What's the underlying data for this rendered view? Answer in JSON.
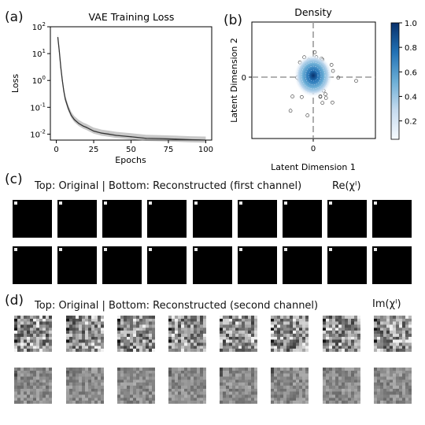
{
  "panels": {
    "a": "(a)",
    "b": "(b)",
    "c": "(c)",
    "d": "(d)"
  },
  "chart_data": [
    {
      "type": "line",
      "title": "VAE Training Loss",
      "xlabel": "Epochs",
      "ylabel": "Loss",
      "yscale": "log",
      "xlim": [
        0,
        100
      ],
      "ylim": [
        0.006,
        100
      ],
      "x_ticks": [
        "0",
        "25",
        "50",
        "75",
        "100"
      ],
      "y_ticks": [
        "10^2",
        "10^1",
        "10^0",
        "10^-1",
        "10^-2"
      ],
      "series": [
        {
          "x": [
            1,
            2,
            3,
            4,
            5,
            6,
            8,
            10,
            12,
            15,
            18,
            20,
            25,
            30,
            35,
            40,
            50,
            60,
            70,
            80,
            90,
            100
          ],
          "y": [
            40,
            12,
            3,
            1.0,
            0.4,
            0.2,
            0.09,
            0.05,
            0.035,
            0.025,
            0.02,
            0.018,
            0.013,
            0.011,
            0.01,
            0.009,
            0.008,
            0.007,
            0.0068,
            0.0065,
            0.0062,
            0.006
          ]
        }
      ],
      "grid": false
    },
    {
      "type": "scatter",
      "title": "Density",
      "xlabel": "Latent Dimension 1",
      "ylabel": "Latent Dimension 2",
      "x_ticks": [
        "0"
      ],
      "y_ticks": [
        "0"
      ],
      "colorbar": {
        "ticks": [
          "1.0",
          "0.8",
          "0.6",
          "0.4",
          "0.2"
        ],
        "range": [
          0.05,
          1.0
        ],
        "colormap": "Blues"
      },
      "reference_lines": {
        "x": 0,
        "y": 0,
        "style": "dashed"
      }
    }
  ],
  "section_c": {
    "title": "Top: Original | Bottom: Reconstructed (first channel)",
    "annotation": "Re(χᴵ)",
    "columns": 9,
    "rows": 2
  },
  "section_d": {
    "title": "Top: Original | Bottom: Reconstructed (second channel)",
    "annotation": "Im(χᴵ)",
    "columns": 8,
    "rows": 2
  },
  "colors": {
    "loss_line": "#333333",
    "loss_band": "#9a9a9a",
    "density_dark": "#08306b",
    "density_light": "#f7fbff",
    "ref_line": "#999999"
  }
}
